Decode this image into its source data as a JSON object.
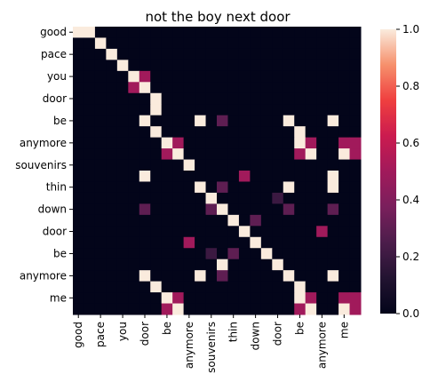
{
  "chart_data": {
    "type": "heatmap",
    "title": "not the boy next door",
    "xlabel": "",
    "ylabel": "",
    "row_tick_labels": [
      "good",
      "",
      "pace",
      "",
      "you",
      "",
      "door",
      "",
      "be",
      "",
      "anymore",
      "",
      "souvenirs",
      "",
      "thin",
      "",
      "down",
      "",
      "door",
      "",
      "be",
      "",
      "anymore",
      "",
      "me",
      ""
    ],
    "col_tick_labels": [
      "good",
      "",
      "pace",
      "",
      "you",
      "",
      "door",
      "",
      "be",
      "",
      "anymore",
      "",
      "souvenirs",
      "",
      "thin",
      "",
      "down",
      "",
      "door",
      "",
      "be",
      "",
      "anymore",
      "",
      "me",
      ""
    ],
    "colorbar": {
      "min": 0.0,
      "max": 1.0,
      "ticks": [
        "0.0",
        "0.2",
        "0.4",
        "0.6",
        "0.8",
        "1.0"
      ]
    },
    "cells": [
      [
        1,
        1,
        0,
        0,
        0,
        0,
        0,
        0,
        0,
        0,
        0,
        0,
        0,
        0,
        0,
        0,
        0,
        0,
        0,
        0,
        0,
        0,
        0,
        0,
        0,
        0
      ],
      [
        0,
        0,
        1,
        0,
        0,
        0,
        0,
        0,
        0,
        0,
        0,
        0,
        0,
        0,
        0,
        0,
        0,
        0,
        0,
        0,
        0,
        0,
        0,
        0,
        0,
        0
      ],
      [
        0,
        0,
        0,
        1,
        0,
        0,
        0,
        0,
        0,
        0,
        0,
        0,
        0,
        0,
        0,
        0,
        0,
        0,
        0,
        0,
        0,
        0,
        0,
        0,
        0,
        0
      ],
      [
        0,
        0,
        0,
        0,
        1,
        0,
        0,
        0,
        0,
        0,
        0,
        0,
        0,
        0,
        0,
        0,
        0,
        0,
        0,
        0,
        0,
        0,
        0,
        0,
        0,
        0
      ],
      [
        0,
        0,
        0,
        0,
        0,
        1,
        0.5,
        0,
        0,
        0,
        0,
        0,
        0,
        0,
        0,
        0,
        0,
        0,
        0,
        0,
        0,
        0,
        0,
        0,
        0,
        0
      ],
      [
        0,
        0,
        0,
        0,
        0,
        0.5,
        1,
        0,
        0,
        0,
        0,
        0,
        0,
        0,
        0,
        0,
        0,
        0,
        0,
        0,
        0,
        0,
        0,
        0,
        0,
        0
      ],
      [
        0,
        0,
        0,
        0,
        0,
        0,
        0,
        1,
        0,
        0,
        0,
        0,
        0,
        0,
        0,
        0,
        0,
        0,
        0,
        0,
        0,
        0,
        0,
        0,
        0,
        0
      ],
      [
        0,
        0,
        0,
        0,
        0,
        0,
        0,
        1,
        0,
        0,
        0,
        0,
        0,
        0,
        0,
        0,
        0,
        0,
        0,
        0,
        0,
        0,
        0,
        0,
        0,
        0
      ],
      [
        0,
        0,
        0,
        0,
        0,
        0,
        1,
        0,
        0,
        0,
        0,
        1,
        0,
        0.3,
        0,
        0,
        0,
        0,
        0,
        1,
        0,
        0,
        0,
        1,
        0,
        0
      ],
      [
        0,
        0,
        0,
        0,
        0,
        0,
        0,
        1,
        0,
        0,
        0,
        0,
        0,
        0,
        0,
        0,
        0,
        0,
        0,
        0,
        1,
        0,
        0,
        0,
        0,
        0
      ],
      [
        0,
        0,
        0,
        0,
        0,
        0,
        0,
        0,
        1,
        0.5,
        0,
        0,
        0,
        0,
        0,
        0,
        0,
        0,
        0,
        0,
        1,
        0.5,
        0,
        0,
        0.5,
        0.5
      ],
      [
        0,
        0,
        0,
        0,
        0,
        0,
        0,
        0,
        0.5,
        1,
        0,
        0,
        0,
        0,
        0,
        0,
        0,
        0,
        0,
        0,
        0.5,
        1,
        0,
        0,
        1,
        0.5
      ],
      [
        0,
        0,
        0,
        0,
        0,
        0,
        0,
        0,
        0,
        0,
        1,
        0,
        0,
        0,
        0,
        0,
        0,
        0,
        0,
        0,
        0,
        0,
        0,
        0,
        0,
        0
      ],
      [
        0,
        0,
        0,
        0,
        0,
        0,
        1,
        0,
        0,
        0,
        0,
        0,
        0,
        0,
        0,
        0.5,
        0,
        0,
        0,
        0,
        0,
        0,
        0,
        1,
        0,
        0
      ],
      [
        0,
        0,
        0,
        0,
        0,
        0,
        0,
        0,
        0,
        0,
        0,
        1,
        0,
        0.3,
        0,
        0,
        0,
        0,
        0,
        1,
        0,
        0,
        0,
        1,
        0,
        0
      ],
      [
        0,
        0,
        0,
        0,
        0,
        0,
        0,
        0,
        0,
        0,
        0,
        0,
        1,
        0,
        0,
        0,
        0,
        0,
        0.2,
        0,
        0,
        0,
        0,
        0,
        0,
        0
      ],
      [
        0,
        0,
        0,
        0,
        0,
        0,
        0.3,
        0,
        0,
        0,
        0,
        0,
        0.3,
        1,
        0,
        0,
        0,
        0,
        0,
        0.3,
        0,
        0,
        0,
        0.3,
        0,
        0
      ],
      [
        0,
        0,
        0,
        0,
        0,
        0,
        0,
        0,
        0,
        0,
        0,
        0,
        0,
        0,
        1,
        0,
        0.3,
        0,
        0,
        0,
        0,
        0,
        0,
        0,
        0,
        0
      ],
      [
        0,
        0,
        0,
        0,
        0,
        0,
        0,
        0,
        0,
        0,
        0,
        0,
        0,
        0,
        0,
        1,
        0,
        0,
        0,
        0,
        0,
        0,
        0.5,
        0,
        0,
        0
      ],
      [
        0,
        0,
        0,
        0,
        0,
        0,
        0,
        0,
        0,
        0,
        0.5,
        0,
        0,
        0,
        0,
        0,
        1,
        0,
        0,
        0,
        0,
        0,
        0,
        0,
        0,
        0
      ],
      [
        0,
        0,
        0,
        0,
        0,
        0,
        0,
        0,
        0,
        0,
        0,
        0,
        0.2,
        0,
        0.3,
        0,
        0,
        1,
        0,
        0,
        0,
        0,
        0,
        0,
        0,
        0
      ],
      [
        0,
        0,
        0,
        0,
        0,
        0,
        0,
        0,
        0,
        0,
        0,
        0,
        0,
        1,
        0,
        0,
        0,
        0,
        1,
        0,
        0,
        0,
        0,
        0,
        0,
        0
      ],
      [
        0,
        0,
        0,
        0,
        0,
        0,
        1,
        0,
        0,
        0,
        0,
        1,
        0,
        0.3,
        0,
        0,
        0,
        0,
        0,
        1,
        0,
        0,
        0,
        1,
        0,
        0
      ],
      [
        0,
        0,
        0,
        0,
        0,
        0,
        0,
        1,
        0,
        0,
        0,
        0,
        0,
        0,
        0,
        0,
        0,
        0,
        0,
        0,
        1,
        0,
        0,
        0,
        0,
        0
      ],
      [
        0,
        0,
        0,
        0,
        0,
        0,
        0,
        0,
        1,
        0.5,
        0,
        0,
        0,
        0,
        0,
        0,
        0,
        0,
        0,
        0,
        1,
        0.5,
        0,
        0,
        0.5,
        0.5
      ],
      [
        0,
        0,
        0,
        0,
        0,
        0,
        0,
        0,
        0.5,
        1,
        0,
        0,
        0,
        0,
        0,
        0,
        0,
        0,
        0,
        0,
        0.5,
        1,
        0,
        0,
        1,
        0.5
      ]
    ]
  }
}
